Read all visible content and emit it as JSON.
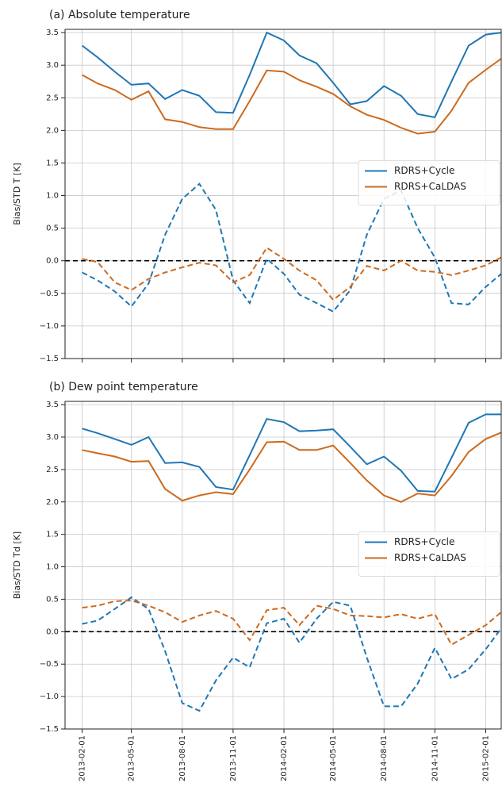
{
  "chart_data": [
    {
      "type": "line",
      "title": "(a) Absolute temperature",
      "ylabel": "Bias/STD T [K]",
      "x": [
        "2013-02-01",
        "2013-03-01",
        "2013-04-01",
        "2013-05-01",
        "2013-06-01",
        "2013-07-01",
        "2013-08-01",
        "2013-09-01",
        "2013-10-01",
        "2013-11-01",
        "2013-12-01",
        "2014-01-01",
        "2014-02-01",
        "2014-03-01",
        "2014-04-01",
        "2014-05-01",
        "2014-06-01",
        "2014-07-01",
        "2014-08-01",
        "2014-09-01",
        "2014-10-01",
        "2014-11-01",
        "2014-12-01",
        "2015-01-01",
        "2015-02-01",
        "2015-03-01"
      ],
      "series": [
        {
          "name": "RDRS+Cycle",
          "color": "#1f77b4",
          "values": [
            3.3,
            3.12,
            2.9,
            2.7,
            2.72,
            2.48,
            2.62,
            2.53,
            2.28,
            2.27,
            2.85,
            3.5,
            3.38,
            3.15,
            3.03,
            2.73,
            2.4,
            2.45,
            2.68,
            2.53,
            2.25,
            2.2,
            2.75,
            3.3,
            3.47,
            3.5
          ],
          "bias": [
            -0.18,
            -0.3,
            -0.47,
            -0.7,
            -0.35,
            0.4,
            0.95,
            1.18,
            0.78,
            -0.3,
            -0.65,
            0.03,
            -0.2,
            -0.52,
            -0.65,
            -0.78,
            -0.45,
            0.4,
            0.95,
            1.08,
            0.5,
            0.05,
            -0.65,
            -0.67,
            -0.4,
            -0.2
          ]
        },
        {
          "name": "RDRS+CaLDAS",
          "color": "#cc6a1e",
          "values": [
            2.85,
            2.72,
            2.62,
            2.47,
            2.6,
            2.17,
            2.13,
            2.05,
            2.02,
            2.02,
            2.45,
            2.92,
            2.9,
            2.77,
            2.67,
            2.56,
            2.37,
            2.24,
            2.16,
            2.04,
            1.95,
            1.98,
            2.3,
            2.73,
            2.93,
            3.1
          ],
          "bias": [
            0.03,
            -0.02,
            -0.33,
            -0.45,
            -0.28,
            -0.18,
            -0.1,
            -0.03,
            -0.07,
            -0.33,
            -0.22,
            0.2,
            0.03,
            -0.15,
            -0.3,
            -0.6,
            -0.4,
            -0.08,
            -0.15,
            0.0,
            -0.15,
            -0.17,
            -0.22,
            -0.15,
            -0.07,
            0.05
          ]
        }
      ],
      "xlim": [
        "2013-01-01",
        "2015-03-01"
      ],
      "xticks": [
        "2013-02-01",
        "2013-05-01",
        "2013-08-01",
        "2013-11-01",
        "2014-02-01",
        "2014-05-01",
        "2014-08-01",
        "2014-11-01",
        "2015-02-01"
      ],
      "xtick_labels": false,
      "ylim": [
        -1.5,
        3.55
      ],
      "yticks": [
        {
          "value": -1.5,
          "label": "−1.5"
        },
        {
          "value": -1,
          "label": "−1.0"
        },
        {
          "value": -0.5,
          "label": "−0.5"
        },
        {
          "value": 0,
          "label": "0.0"
        },
        0.5,
        {
          "value": 1,
          "label": "1.0"
        },
        1.5,
        {
          "value": 2,
          "label": "2.0"
        },
        2.5,
        {
          "value": 3,
          "label": "3.0"
        },
        3.5
      ],
      "hline": 0,
      "grid": true,
      "legend": "center right"
    },
    {
      "type": "line",
      "title": "(b) Dew point temperature",
      "ylabel": "Bias/STD Td [K]",
      "x": [
        "2013-02-01",
        "2013-03-01",
        "2013-04-01",
        "2013-05-01",
        "2013-06-01",
        "2013-07-01",
        "2013-08-01",
        "2013-09-01",
        "2013-10-01",
        "2013-11-01",
        "2013-12-01",
        "2014-01-01",
        "2014-02-01",
        "2014-03-01",
        "2014-04-01",
        "2014-05-01",
        "2014-06-01",
        "2014-07-01",
        "2014-08-01",
        "2014-09-01",
        "2014-10-01",
        "2014-11-01",
        "2014-12-01",
        "2015-01-01",
        "2015-02-01",
        "2015-03-01"
      ],
      "series": [
        {
          "name": "RDRS+Cycle",
          "color": "#1f77b4",
          "values": [
            3.13,
            3.06,
            2.97,
            2.88,
            3.0,
            2.6,
            2.61,
            2.54,
            2.23,
            2.19,
            2.72,
            3.28,
            3.23,
            3.09,
            3.1,
            3.12,
            2.85,
            2.58,
            2.7,
            2.48,
            2.17,
            2.16,
            2.68,
            3.22,
            3.35,
            3.35
          ],
          "bias": [
            0.12,
            0.17,
            0.35,
            0.53,
            0.35,
            -0.3,
            -1.1,
            -1.22,
            -0.75,
            -0.4,
            -0.55,
            0.13,
            0.2,
            -0.17,
            0.2,
            0.46,
            0.4,
            -0.4,
            -1.15,
            -1.15,
            -0.8,
            -0.25,
            -0.73,
            -0.58,
            -0.27,
            0.05
          ]
        },
        {
          "name": "RDRS+CaLDAS",
          "color": "#cc6a1e",
          "values": [
            2.8,
            2.75,
            2.7,
            2.62,
            2.63,
            2.2,
            2.02,
            2.1,
            2.15,
            2.12,
            2.5,
            2.92,
            2.93,
            2.8,
            2.8,
            2.87,
            2.6,
            2.33,
            2.1,
            2.0,
            2.13,
            2.1,
            2.4,
            2.77,
            2.97,
            3.07
          ],
          "bias": [
            0.37,
            0.4,
            0.47,
            0.48,
            0.4,
            0.3,
            0.15,
            0.25,
            0.32,
            0.2,
            -0.13,
            0.33,
            0.37,
            0.1,
            0.4,
            0.35,
            0.25,
            0.24,
            0.22,
            0.27,
            0.2,
            0.27,
            -0.2,
            -0.05,
            0.1,
            0.3
          ]
        }
      ],
      "xlim": [
        "2013-01-01",
        "2015-03-01"
      ],
      "xticks": [
        "2013-02-01",
        "2013-05-01",
        "2013-08-01",
        "2013-11-01",
        "2014-02-01",
        "2014-05-01",
        "2014-08-01",
        "2014-11-01",
        "2015-02-01"
      ],
      "xtick_labels": true,
      "ylim": [
        -1.5,
        3.55
      ],
      "yticks": [
        {
          "value": -1.5,
          "label": "−1.5"
        },
        {
          "value": -1,
          "label": "−1.0"
        },
        {
          "value": -0.5,
          "label": "−0.5"
        },
        {
          "value": 0,
          "label": "0.0"
        },
        0.5,
        {
          "value": 1,
          "label": "1.0"
        },
        1.5,
        {
          "value": 2,
          "label": "2.0"
        },
        2.5,
        {
          "value": 3,
          "label": "3.0"
        },
        3.5
      ],
      "hline": 0,
      "grid": true,
      "legend": "center right"
    }
  ]
}
